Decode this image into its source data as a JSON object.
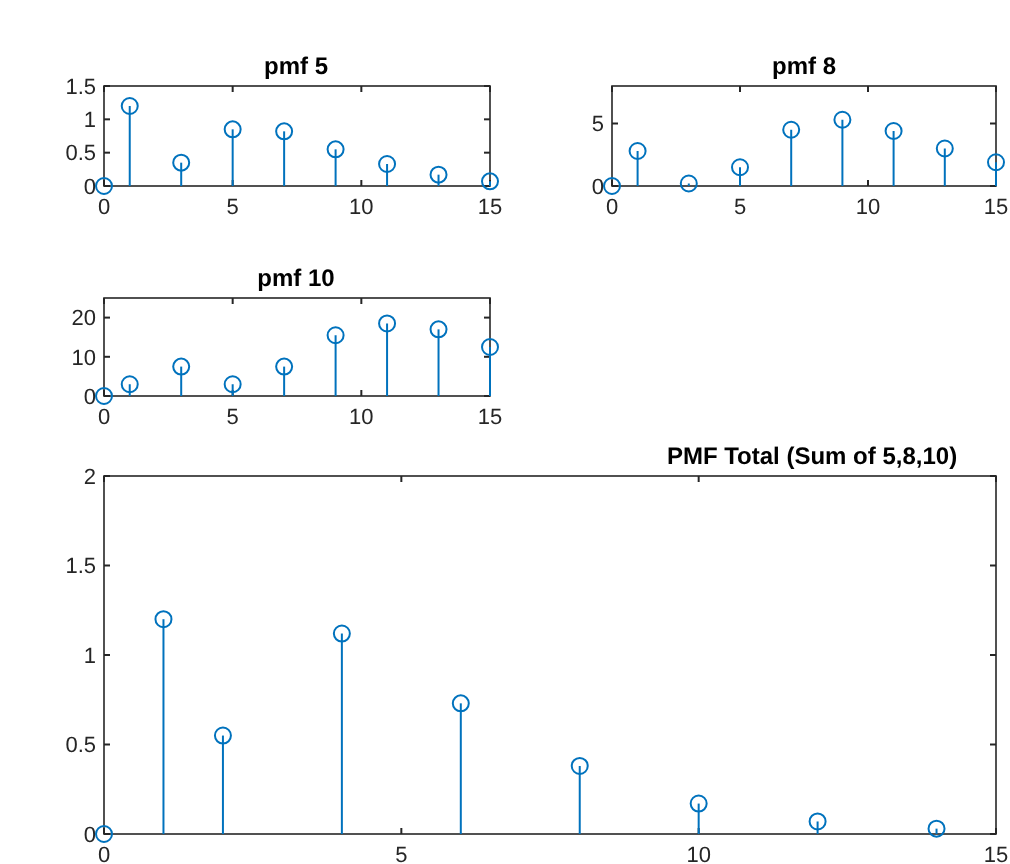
{
  "chart_data": [
    {
      "type": "lollipop",
      "title": "pmf 5",
      "x": [
        0,
        1,
        3,
        5,
        7,
        9,
        11,
        13,
        15
      ],
      "series": [
        {
          "color": "#0072bd",
          "values": [
            0,
            1.2,
            0.35,
            0.85,
            0.82,
            0.55,
            0.33,
            0.17,
            0.07
          ]
        }
      ],
      "xlim": [
        0,
        15
      ],
      "xticks": [
        0,
        5,
        10,
        15
      ],
      "ylim": [
        0,
        1.5
      ],
      "yticks": [
        0,
        0.5,
        1,
        1.5
      ],
      "marker": "circle"
    },
    {
      "type": "lollipop",
      "title": "pmf 8",
      "x": [
        0,
        1,
        3,
        5,
        7,
        9,
        11,
        13,
        15
      ],
      "series": [
        {
          "color": "#0072bd",
          "values": [
            0,
            2.8,
            0.2,
            1.5,
            4.5,
            5.3,
            4.4,
            3.0,
            1.9
          ]
        }
      ],
      "xlim": [
        0,
        15
      ],
      "xticks": [
        0,
        5,
        10,
        15
      ],
      "ylim": [
        0,
        8
      ],
      "yticks": [
        0,
        5
      ],
      "marker": "circle"
    },
    {
      "type": "lollipop",
      "title": "pmf 10",
      "x": [
        0,
        1,
        3,
        5,
        7,
        9,
        11,
        13,
        15
      ],
      "series": [
        {
          "color": "#0072bd",
          "values": [
            0,
            3,
            7.5,
            3,
            7.5,
            15.5,
            18.5,
            17,
            12.5
          ]
        }
      ],
      "xlim": [
        0,
        15
      ],
      "xticks": [
        0,
        5,
        10,
        15
      ],
      "ylim": [
        0,
        25
      ],
      "yticks": [
        0,
        10,
        20
      ],
      "marker": "circle"
    },
    {
      "type": "lollipop",
      "title": "PMF Total (Sum of 5,8,10)",
      "x": [
        0,
        1,
        2,
        4,
        6,
        8,
        10,
        12,
        14
      ],
      "series": [
        {
          "color": "#0072bd",
          "values": [
            0,
            1.2,
            0.55,
            1.12,
            0.73,
            0.38,
            0.17,
            0.07,
            0.03
          ]
        }
      ],
      "xlim": [
        0,
        15
      ],
      "xticks": [
        0,
        5,
        10,
        15
      ],
      "ylim": [
        0,
        2
      ],
      "yticks": [
        0,
        0.5,
        1,
        1.5,
        2
      ],
      "marker": "circle"
    }
  ]
}
